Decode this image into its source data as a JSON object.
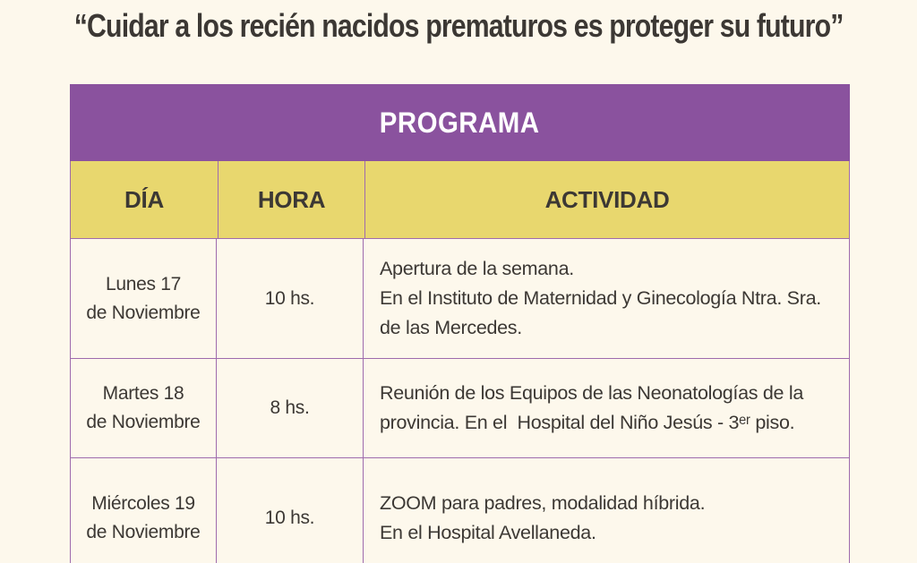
{
  "quote": "“Cuidar a los recién nacidos prematuros es proteger su futuro”",
  "table": {
    "title": "PROGRAMA",
    "columns": {
      "day": "DÍA",
      "hora": "HORA",
      "actividad": "ACTIVIDAD"
    },
    "rows": [
      {
        "day_line1": "Lunes 17",
        "day_line2": "de Noviembre",
        "hora": "10 hs.",
        "activity_lines": [
          "Apertura de la semana.",
          "En el Instituto de Maternidad y Ginecología Ntra. Sra.",
          "de las Mercedes."
        ]
      },
      {
        "day_line1": "Martes 18",
        "day_line2": "de Noviembre",
        "hora": "8 hs.",
        "activity_lines": [
          "Reunión de los Equipos de las Neonatologías de la",
          "provincia. En el  Hospital del Niño Jesús - 3ᵉʳ piso.",
          ""
        ]
      },
      {
        "day_line1": "Miércoles 19",
        "day_line2": "de Noviembre",
        "hora": "10 hs.",
        "activity_lines": [
          "ZOOM para padres, modalidad híbrida.",
          "En el Hospital Avellaneda.",
          ""
        ]
      }
    ]
  },
  "colors": {
    "bg": "#FDF8EC",
    "purple": "#8A529E",
    "yellow": "#E8D76E",
    "border": "#9F6BAD",
    "ink": "#3C3834",
    "white": "#FFFFFF"
  }
}
